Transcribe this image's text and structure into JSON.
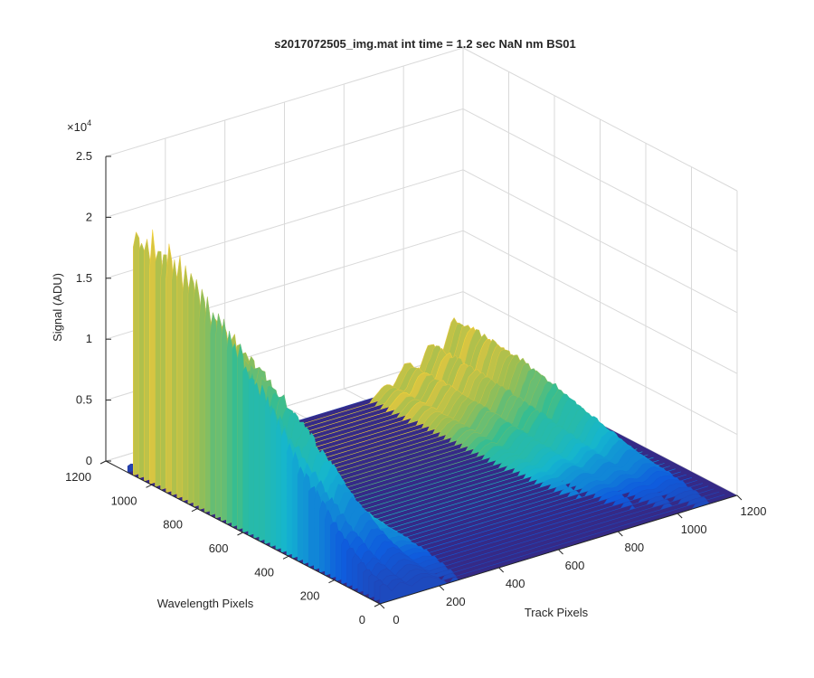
{
  "chart_data": {
    "type": "surface",
    "title": "s2017072505_img.mat int time = 1.2 sec  NaN nm BS01",
    "xlabel": "Track Pixels",
    "ylabel": "Wavelength Pixels",
    "zlabel": "Signal (ADU)",
    "z_exponent_label": "×10",
    "z_exponent_power": "4",
    "xlim": [
      0,
      1200
    ],
    "ylim": [
      0,
      1200
    ],
    "zlim": [
      0,
      25000
    ],
    "x_ticks": [
      "0",
      "200",
      "400",
      "600",
      "800",
      "1000",
      "1200"
    ],
    "y_ticks": [
      "0",
      "200",
      "400",
      "600",
      "800",
      "1000",
      "1200"
    ],
    "z_ticks": [
      "0",
      "0.5",
      "1",
      "1.5",
      "2",
      "2.5"
    ],
    "z_tick_values": [
      0,
      5000,
      10000,
      15000,
      20000,
      25000
    ],
    "grid": true,
    "colormap": "parula",
    "colors": {
      "low": "#352a87",
      "mid_blue": "#0f5cdd",
      "cyan": "#14b5d0",
      "green": "#7fbd67",
      "yellow": "#f9d74a"
    },
    "peaks": [
      {
        "track_center": 10,
        "track_width": 35,
        "amplitude": 21000
      },
      {
        "track_center": 70,
        "track_width": 45,
        "amplitude": 16000
      },
      {
        "track_center": 150,
        "track_width": 60,
        "amplitude": 14000
      },
      {
        "track_center": 250,
        "track_width": 55,
        "amplitude": 4000
      },
      {
        "track_center": 850,
        "track_width": 40,
        "amplitude": 1200
      },
      {
        "track_center": 920,
        "track_width": 45,
        "amplitude": 2500
      },
      {
        "track_center": 1000,
        "track_width": 45,
        "amplitude": 3500
      },
      {
        "track_center": 1080,
        "track_width": 50,
        "amplitude": 5000
      }
    ],
    "wavelength_profile": {
      "start": 0,
      "end": 1100,
      "shape": "rising-to-high-end"
    }
  }
}
